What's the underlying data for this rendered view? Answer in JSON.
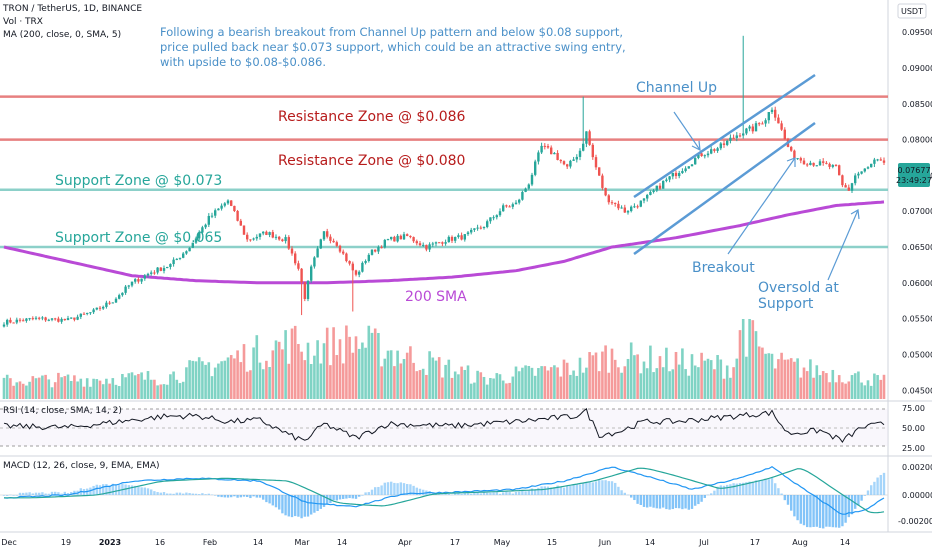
{
  "header": {
    "symbol_line": "TRON / TetherUS, 1D, BINANCE",
    "vol_line": "Vol · TRX",
    "ma_line": "MA (200, close, 0, SMA, 5)",
    "currency": "USDT"
  },
  "annotations": {
    "commentary": [
      "Following a bearish breakout from Channel Up pattern and below $0.08 support,",
      "price pulled back near $0.073 support, which could be an attractive swing entry,",
      "with upside to $0.08-$0.086."
    ],
    "channel_up": "Channel Up",
    "resistance_086": "Resistance Zone @ $0.086",
    "resistance_080": "Resistance Zone @ $0.080",
    "support_073": "Support Zone @ $0.073",
    "support_065": "Support Zone @ $0.065",
    "breakout": "Breakout",
    "oversold_1": "Oversold at",
    "oversold_2": "Support",
    "sma_label": "200 SMA"
  },
  "price_badge": {
    "price": "0.07677",
    "countdown": "23:49:27"
  },
  "rsi": {
    "label": "RSI (14, close, SMA, 14, 2)",
    "ticks": [
      "75.00",
      "50.00",
      "25.00"
    ]
  },
  "macd": {
    "label": "MACD (12, 26, close, 9, EMA, EMA)",
    "ticks": [
      "0.00200",
      "0.00000",
      "-0.00200"
    ]
  },
  "colors": {
    "up": "#26a69a",
    "down": "#ef5350",
    "volume_up": "#7fd3c4",
    "volume_down": "#f59a9a",
    "sma": "#b94ad6",
    "resistance": "#e57373",
    "support": "#80cbc4",
    "annotation_blue": "#4a90c8",
    "resistance_text": "#b71c1c",
    "support_text": "#26a69a",
    "badge": "#26a69a",
    "macd_line": "#2196f3",
    "signal_line": "#26a69a"
  },
  "chart_data": {
    "type": "candlestick",
    "y_ticks": [
      "0.09500",
      "0.09000",
      "0.08500",
      "0.08000",
      "0.07500",
      "0.07000",
      "0.06500",
      "0.06000",
      "0.05500",
      "0.05000",
      "0.04500"
    ],
    "x_ticks": [
      "Dec",
      "19",
      "2023",
      "16",
      "Feb",
      "14",
      "Mar",
      "14",
      "Apr",
      "17",
      "May",
      "15",
      "Jun",
      "14",
      "Jul",
      "17",
      "Aug",
      "14"
    ],
    "ylim": [
      0.0435,
      0.0995
    ],
    "last_price": 0.07677,
    "levels": {
      "resistance": [
        0.086,
        0.08
      ],
      "support": [
        0.073,
        0.065
      ]
    },
    "close_anchors": [
      [
        0,
        0.0545
      ],
      [
        10,
        0.055
      ],
      [
        20,
        0.0548
      ],
      [
        28,
        0.056
      ],
      [
        34,
        0.0575
      ],
      [
        40,
        0.06
      ],
      [
        46,
        0.0615
      ],
      [
        52,
        0.0625
      ],
      [
        58,
        0.065
      ],
      [
        64,
        0.069
      ],
      [
        70,
        0.0715
      ],
      [
        76,
        0.066
      ],
      [
        82,
        0.067
      ],
      [
        88,
        0.066
      ],
      [
        92,
        0.062
      ],
      [
        94,
        0.058
      ],
      [
        96,
        0.062
      ],
      [
        100,
        0.067
      ],
      [
        104,
        0.0655
      ],
      [
        108,
        0.0625
      ],
      [
        110,
        0.061
      ],
      [
        114,
        0.064
      ],
      [
        120,
        0.066
      ],
      [
        126,
        0.0665
      ],
      [
        132,
        0.065
      ],
      [
        138,
        0.066
      ],
      [
        144,
        0.0665
      ],
      [
        150,
        0.068
      ],
      [
        156,
        0.0705
      ],
      [
        160,
        0.071
      ],
      [
        164,
        0.074
      ],
      [
        168,
        0.079
      ],
      [
        172,
        0.078
      ],
      [
        176,
        0.076
      ],
      [
        180,
        0.0785
      ],
      [
        182,
        0.081
      ],
      [
        184,
        0.0775
      ],
      [
        188,
        0.072
      ],
      [
        194,
        0.07
      ],
      [
        200,
        0.0715
      ],
      [
        206,
        0.074
      ],
      [
        212,
        0.076
      ],
      [
        218,
        0.078
      ],
      [
        224,
        0.079
      ],
      [
        230,
        0.081
      ],
      [
        234,
        0.0815
      ],
      [
        238,
        0.083
      ],
      [
        240,
        0.0845
      ],
      [
        242,
        0.0825
      ],
      [
        244,
        0.08
      ],
      [
        246,
        0.078
      ],
      [
        250,
        0.077
      ],
      [
        256,
        0.0765
      ],
      [
        260,
        0.076
      ],
      [
        262,
        0.0735
      ],
      [
        264,
        0.073
      ],
      [
        266,
        0.075
      ],
      [
        270,
        0.076
      ],
      [
        272,
        0.077
      ],
      [
        274,
        0.07677
      ]
    ],
    "volume_anchors": [
      [
        0,
        0.25
      ],
      [
        50,
        0.3
      ],
      [
        92,
        0.8
      ],
      [
        94,
        0.7
      ],
      [
        110,
        0.8
      ],
      [
        150,
        0.28
      ],
      [
        180,
        0.45
      ],
      [
        188,
        0.6
      ],
      [
        228,
        0.45
      ],
      [
        231,
        1.0
      ],
      [
        240,
        0.5
      ],
      [
        260,
        0.35
      ],
      [
        275,
        0.25
      ]
    ],
    "rsi_anchors": [
      [
        0,
        52
      ],
      [
        20,
        50
      ],
      [
        40,
        60
      ],
      [
        50,
        65
      ],
      [
        60,
        66
      ],
      [
        70,
        58
      ],
      [
        80,
        60
      ],
      [
        90,
        38
      ],
      [
        94,
        32
      ],
      [
        100,
        55
      ],
      [
        110,
        36
      ],
      [
        120,
        55
      ],
      [
        140,
        52
      ],
      [
        160,
        58
      ],
      [
        170,
        62
      ],
      [
        178,
        65
      ],
      [
        182,
        72
      ],
      [
        186,
        40
      ],
      [
        192,
        44
      ],
      [
        200,
        58
      ],
      [
        210,
        58
      ],
      [
        220,
        62
      ],
      [
        235,
        68
      ],
      [
        240,
        70
      ],
      [
        245,
        42
      ],
      [
        255,
        46
      ],
      [
        262,
        32
      ],
      [
        268,
        50
      ],
      [
        275,
        55
      ]
    ],
    "macd_anchors": [
      [
        0,
        -0.0002
      ],
      [
        20,
        0.0
      ],
      [
        40,
        0.001
      ],
      [
        60,
        0.0012
      ],
      [
        80,
        0.001
      ],
      [
        95,
        -0.0006
      ],
      [
        110,
        -0.0008
      ],
      [
        125,
        0.0001
      ],
      [
        140,
        0.0002
      ],
      [
        160,
        0.0004
      ],
      [
        175,
        0.001
      ],
      [
        190,
        0.002
      ],
      [
        200,
        0.0014
      ],
      [
        215,
        0.0004
      ],
      [
        230,
        0.0012
      ],
      [
        240,
        0.002
      ],
      [
        250,
        0.0004
      ],
      [
        262,
        -0.0014
      ],
      [
        270,
        -0.001
      ],
      [
        275,
        -0.0002
      ]
    ],
    "sma_anchors": [
      [
        0,
        0.065
      ],
      [
        20,
        0.063
      ],
      [
        40,
        0.061
      ],
      [
        60,
        0.0603
      ],
      [
        80,
        0.06
      ],
      [
        100,
        0.06
      ],
      [
        120,
        0.0603
      ],
      [
        140,
        0.0608
      ],
      [
        160,
        0.0617
      ],
      [
        175,
        0.063
      ],
      [
        190,
        0.065
      ],
      [
        210,
        0.0663
      ],
      [
        230,
        0.068
      ],
      [
        245,
        0.0695
      ],
      [
        260,
        0.0708
      ],
      [
        275,
        0.0713
      ]
    ]
  }
}
